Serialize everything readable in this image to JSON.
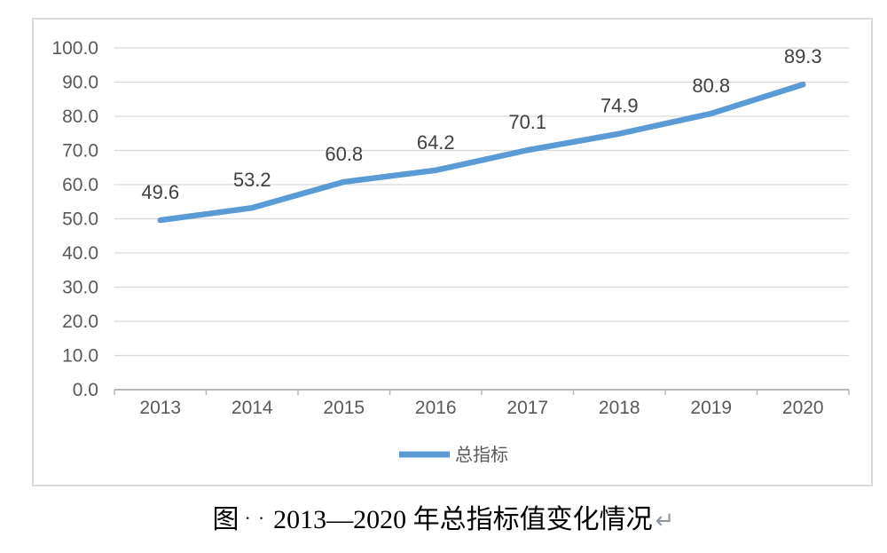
{
  "chart_data": {
    "type": "line",
    "categories": [
      "2013",
      "2014",
      "2015",
      "2016",
      "2017",
      "2018",
      "2019",
      "2020"
    ],
    "series": [
      {
        "name": "总指标",
        "values": [
          49.6,
          53.2,
          60.8,
          64.2,
          70.1,
          74.9,
          80.8,
          89.3
        ],
        "color": "#5b9bd5"
      }
    ],
    "data_labels": [
      "49.6",
      "53.2",
      "60.8",
      "64.2",
      "70.1",
      "74.9",
      "80.8",
      "89.3"
    ],
    "yticks": [
      "0.0",
      "10.0",
      "20.0",
      "30.0",
      "40.0",
      "50.0",
      "60.0",
      "70.0",
      "80.0",
      "90.0",
      "100.0"
    ],
    "ylim": [
      0,
      100
    ],
    "title": "",
    "xlabel": "",
    "ylabel": "",
    "grid": true,
    "legend_position": "bottom",
    "legend": [
      {
        "label": "总指标",
        "color": "#5b9bd5"
      }
    ],
    "colors": {
      "line": "#5b9bd5",
      "gridline": "#d9d9d9",
      "axis_line": "#b7b7b7",
      "axis_label": "#595959",
      "data_label": "#404040",
      "legend_label": "#595959",
      "chart_border": "#d9d9d9"
    }
  },
  "caption": {
    "prefix": "图",
    "space_marks": "··",
    "text": "2013—2020 年总指标值变化情况",
    "return_mark": "↵"
  }
}
